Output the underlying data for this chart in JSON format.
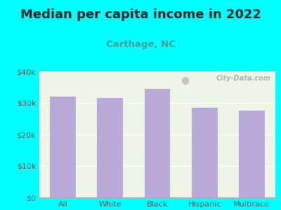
{
  "title": "Median per capita income in 2022",
  "subtitle": "Carthage, NC",
  "categories": [
    "All",
    "White",
    "Black",
    "Hispanic",
    "Multirace"
  ],
  "values": [
    32000,
    31500,
    34500,
    28500,
    27500
  ],
  "bar_color": "#b8a9d9",
  "background_outer": "#00ffff",
  "background_plot": "#eef4e8",
  "title_color": "#222222",
  "subtitle_color": "#4a9a9a",
  "tick_color": "#555555",
  "ylim": [
    0,
    40000
  ],
  "yticks": [
    0,
    10000,
    20000,
    30000,
    40000
  ],
  "ytick_labels": [
    "$0",
    "$10k",
    "$20k",
    "$30k",
    "$40k"
  ],
  "watermark": "City-Data.com",
  "title_fontsize": 13,
  "subtitle_fontsize": 9.5,
  "tick_fontsize": 8
}
